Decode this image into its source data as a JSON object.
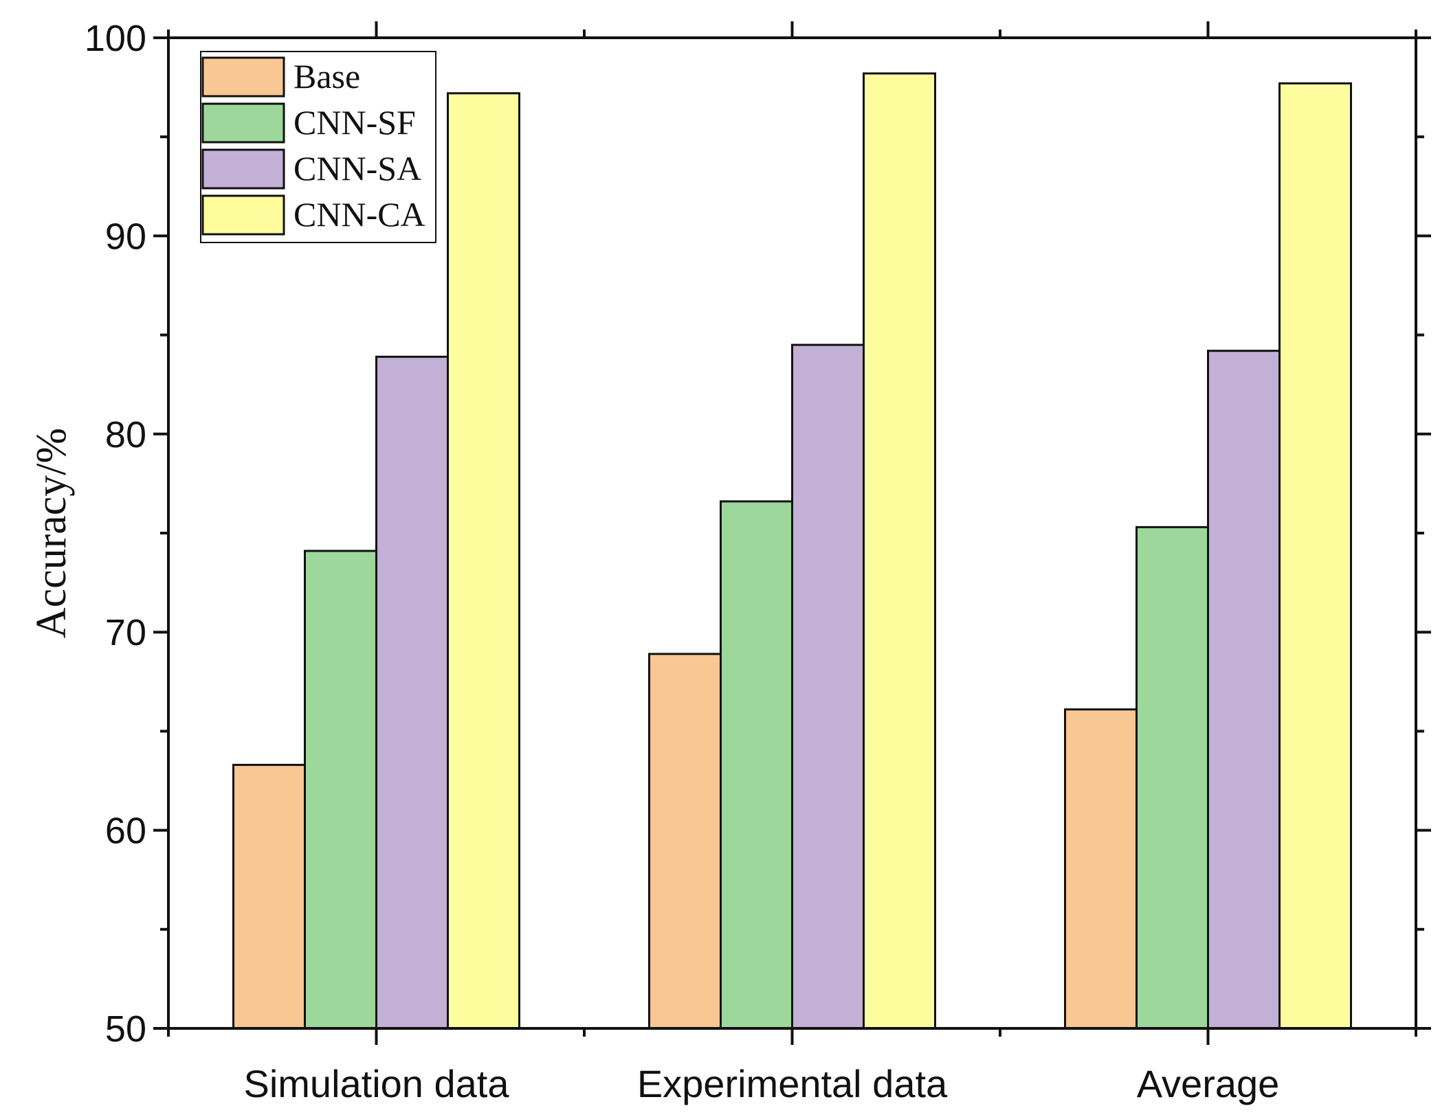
{
  "chart_data": {
    "type": "bar",
    "title": "",
    "xlabel": "",
    "ylabel": "Accuracy/%",
    "ylim": [
      50,
      100
    ],
    "yticks": [
      50,
      60,
      70,
      80,
      90,
      100
    ],
    "yticks_minor": [
      55,
      65,
      75,
      85,
      95
    ],
    "categories": [
      "Simulation data",
      "Experimental data",
      "Average"
    ],
    "series": [
      {
        "name": "Base",
        "color": "#F9C794",
        "values": [
          63.3,
          68.9,
          66.1
        ]
      },
      {
        "name": "CNN-SF",
        "color": "#9ED79C",
        "values": [
          74.1,
          76.6,
          75.3
        ]
      },
      {
        "name": "CNN-SA",
        "color": "#C2B0D6",
        "values": [
          83.9,
          84.5,
          84.2
        ]
      },
      {
        "name": "CNN-CA",
        "color": "#FEFD9E",
        "values": [
          97.2,
          98.2,
          97.7
        ]
      }
    ],
    "legend_position": "top-left",
    "grid": false
  }
}
